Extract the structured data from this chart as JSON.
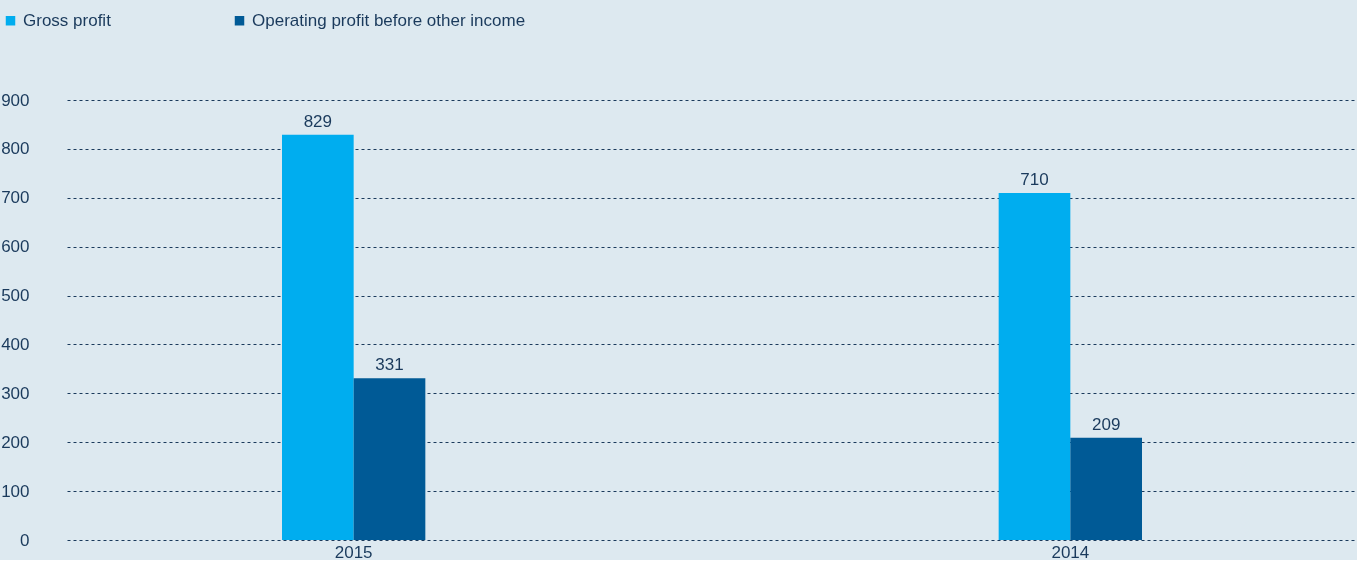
{
  "chart_data": {
    "type": "bar",
    "categories": [
      "2015",
      "2014"
    ],
    "series": [
      {
        "name": "Gross profit",
        "color": "#00adef",
        "values": [
          829,
          710
        ]
      },
      {
        "name": "Operating profit before other income",
        "color": "#005a96",
        "values": [
          331,
          209
        ]
      }
    ],
    "ylim": [
      0,
      900
    ],
    "yticks": [
      0,
      100,
      200,
      300,
      400,
      500,
      600,
      700,
      800,
      900
    ],
    "grid": "y",
    "legend": "top left",
    "data_labels": true
  }
}
